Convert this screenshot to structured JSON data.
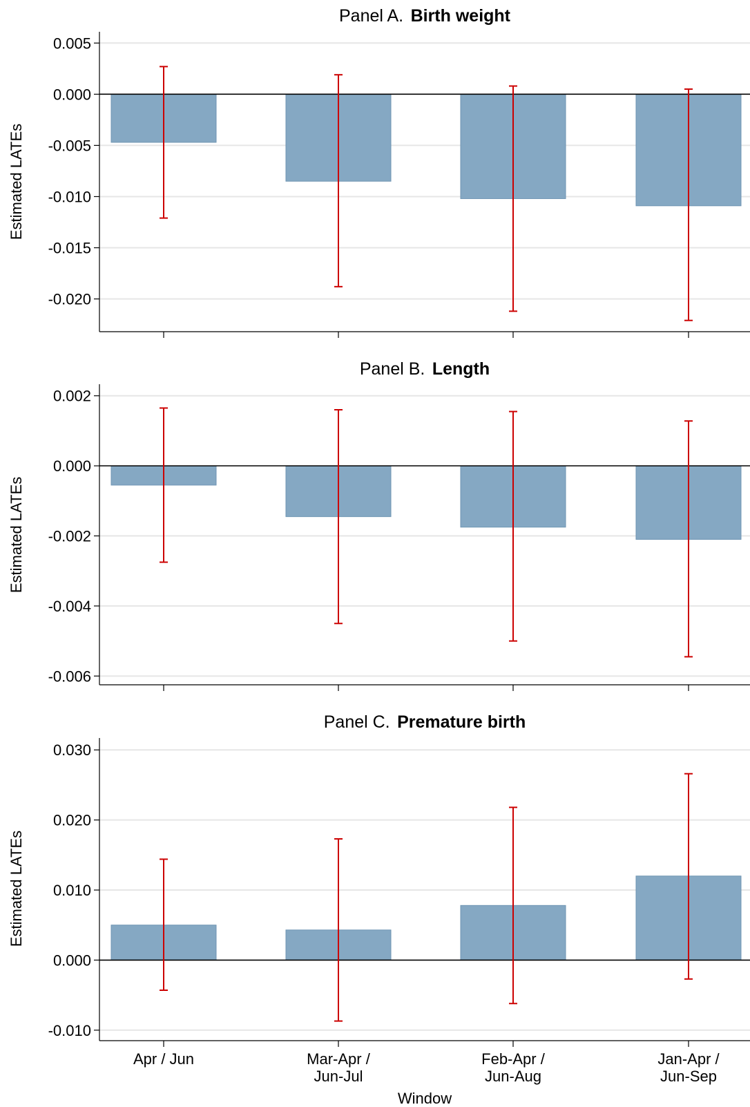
{
  "chart_data": [
    {
      "type": "bar",
      "title_prefix": "Panel A.",
      "title_bold": "Birth weight",
      "ylabel": "Estimated LATEs",
      "categories": [
        [
          "Apr / Jun"
        ],
        [
          "Mar-Apr /",
          "Jun-Jul"
        ],
        [
          "Feb-Apr /",
          "Jun-Aug"
        ],
        [
          "Jan-Apr /",
          "Jun-Sep"
        ]
      ],
      "values": [
        -0.0047,
        -0.0085,
        -0.0102,
        -0.0109
      ],
      "ci_low": [
        -0.0121,
        -0.0188,
        -0.0212,
        -0.0221
      ],
      "ci_high": [
        0.0027,
        0.0019,
        0.0008,
        0.0005
      ],
      "yticks": [
        0.005,
        0.0,
        -0.005,
        -0.01,
        -0.015,
        -0.02
      ],
      "ytick_labels": [
        "0.005",
        "0.000",
        "-0.005",
        "-0.010",
        "-0.015",
        "-0.020"
      ],
      "ylim": [
        -0.0232,
        0.0061
      ],
      "grid": true
    },
    {
      "type": "bar",
      "title_prefix": "Panel B.",
      "title_bold": "Length",
      "ylabel": "Estimated LATEs",
      "categories": [
        [
          "Apr / Jun"
        ],
        [
          "Mar-Apr /",
          "Jun-Jul"
        ],
        [
          "Feb-Apr /",
          "Jun-Aug"
        ],
        [
          "Jan-Apr /",
          "Jun-Sep"
        ]
      ],
      "values": [
        -0.00055,
        -0.00145,
        -0.00175,
        -0.0021
      ],
      "ci_low": [
        -0.00275,
        -0.0045,
        -0.005,
        -0.00545
      ],
      "ci_high": [
        0.00165,
        0.0016,
        0.00155,
        0.00128
      ],
      "yticks": [
        0.002,
        0.0,
        -0.002,
        -0.004,
        -0.006
      ],
      "ytick_labels": [
        "0.002",
        "0.000",
        "-0.002",
        "-0.004",
        "-0.006"
      ],
      "ylim": [
        -0.00625,
        0.00233
      ],
      "grid": true
    },
    {
      "type": "bar",
      "title_prefix": "Panel C.",
      "title_bold": "Premature birth",
      "ylabel": "Estimated LATEs",
      "xlabel": "Window",
      "categories": [
        [
          "Apr / Jun"
        ],
        [
          "Mar-Apr /",
          "Jun-Jul"
        ],
        [
          "Feb-Apr /",
          "Jun-Aug"
        ],
        [
          "Jan-Apr /",
          "Jun-Sep"
        ]
      ],
      "values": [
        0.005,
        0.0043,
        0.0078,
        0.012
      ],
      "ci_low": [
        -0.0043,
        -0.0087,
        -0.0062,
        -0.0027
      ],
      "ci_high": [
        0.0144,
        0.0173,
        0.0218,
        0.0266
      ],
      "yticks": [
        0.03,
        0.02,
        0.01,
        0.0,
        -0.01
      ],
      "ytick_labels": [
        "0.030",
        "0.020",
        "0.010",
        "0.000",
        "-0.010"
      ],
      "ylim": [
        -0.0115,
        0.0317
      ],
      "grid": true
    }
  ]
}
